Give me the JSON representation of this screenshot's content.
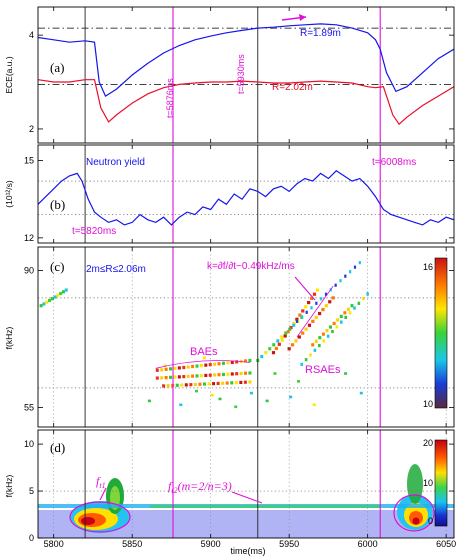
{
  "chart_data": {
    "type": "multi-panel",
    "x": {
      "label": "time(ms)",
      "range": [
        5790,
        6055
      ],
      "ticks": [
        5800,
        5850,
        5900,
        5950,
        6000,
        6050
      ]
    },
    "vlines_black": [
      5820,
      5930
    ],
    "vlines_magenta": [
      5876,
      6008
    ],
    "panels": [
      {
        "id": "a",
        "label": "(a)",
        "type": "line",
        "ylabel": "ECE(a.u.)",
        "ylim": [
          1.7,
          4.6
        ],
        "yticks": [
          "2",
          "4"
        ],
        "ytick_values": [
          2,
          4
        ],
        "hlines_dashed": [
          4.15,
          2.95
        ],
        "series": [
          {
            "name": "R=1.89m",
            "color": "#1515ee",
            "x": [
              5790,
              5800,
              5810,
              5820,
              5826,
              5829,
              5833,
              5840,
              5850,
              5860,
              5870,
              5880,
              5890,
              5900,
              5910,
              5920,
              5930,
              5940,
              5950,
              5960,
              5970,
              5980,
              5990,
              6000,
              6005,
              6008,
              6012,
              6018,
              6025,
              6035,
              6045,
              6055
            ],
            "y": [
              3.95,
              3.9,
              3.85,
              3.88,
              3.85,
              3.0,
              2.7,
              2.85,
              3.15,
              3.4,
              3.62,
              3.78,
              3.9,
              3.98,
              4.05,
              4.1,
              4.15,
              4.17,
              4.2,
              4.22,
              4.24,
              4.22,
              4.15,
              4.05,
              3.9,
              3.7,
              3.2,
              2.8,
              2.9,
              3.2,
              3.5,
              3.7
            ]
          },
          {
            "name": "R=2.02m",
            "color": "#e8102a",
            "x": [
              5790,
              5800,
              5810,
              5820,
              5826,
              5830,
              5835,
              5840,
              5850,
              5860,
              5870,
              5880,
              5890,
              5900,
              5910,
              5920,
              5930,
              5940,
              5950,
              5960,
              5970,
              5980,
              5990,
              6000,
              6005,
              6010,
              6016,
              6020,
              6025,
              6035,
              6045,
              6055
            ],
            "y": [
              3.05,
              3.0,
              3.0,
              3.05,
              3.05,
              2.45,
              2.15,
              2.3,
              2.55,
              2.75,
              2.88,
              2.95,
              2.98,
              3.0,
              3.0,
              3.02,
              3.0,
              2.98,
              2.98,
              3.0,
              3.02,
              3.0,
              2.98,
              2.9,
              2.88,
              2.9,
              2.3,
              2.1,
              2.25,
              2.5,
              2.7,
              2.9
            ]
          }
        ],
        "annotations": [
          "R=1.89m",
          "R=2.02m",
          "t=5876ms",
          "t=5930ms"
        ]
      },
      {
        "id": "b",
        "label": "(b)",
        "type": "line",
        "ylabel": "(10¹²/s)",
        "ylim": [
          11.8,
          15.6
        ],
        "yticks": [
          "12",
          "15"
        ],
        "ytick_values": [
          12,
          15
        ],
        "hlines_dotted": [
          14.2,
          12.9
        ],
        "series": [
          {
            "name": "Neutron yield",
            "color": "#1515ee",
            "x": [
              5790,
              5795,
              5800,
              5805,
              5810,
              5815,
              5818,
              5822,
              5826,
              5830,
              5835,
              5840,
              5845,
              5850,
              5855,
              5860,
              5865,
              5870,
              5875,
              5880,
              5885,
              5890,
              5895,
              5900,
              5905,
              5910,
              5915,
              5920,
              5925,
              5930,
              5935,
              5940,
              5945,
              5950,
              5955,
              5960,
              5965,
              5970,
              5975,
              5980,
              5985,
              5990,
              5995,
              6000,
              6005,
              6010,
              6015,
              6020,
              6025,
              6030,
              6035,
              6040,
              6045,
              6050,
              6055
            ],
            "y": [
              13.3,
              13.6,
              13.9,
              14.2,
              14.4,
              14.5,
              14.2,
              13.5,
              13.0,
              12.8,
              12.6,
              12.7,
              12.5,
              12.6,
              12.9,
              12.7,
              12.6,
              12.8,
              12.5,
              12.8,
              13.0,
              12.9,
              13.2,
              13.1,
              13.5,
              13.3,
              13.7,
              13.5,
              13.9,
              13.8,
              13.6,
              13.9,
              14.0,
              13.8,
              14.1,
              14.3,
              14.2,
              14.5,
              14.3,
              14.6,
              14.4,
              14.2,
              14.3,
              14.0,
              13.6,
              13.1,
              12.9,
              12.8,
              12.7,
              12.6,
              12.5,
              12.7,
              12.6,
              12.8,
              12.7
            ]
          }
        ],
        "annotations": [
          "Neutron yield",
          "t=5820ms",
          "t=6008ms"
        ]
      },
      {
        "id": "c",
        "label": "(c)",
        "type": "spectrogram",
        "ylabel": "f(kHz)",
        "ylim": [
          50,
          96
        ],
        "yticks": [
          "55",
          "90"
        ],
        "ytick_values": [
          55,
          90
        ],
        "hlines_dotted": [
          83,
          60
        ],
        "colorbar": {
          "ticks": [
            "16",
            "10"
          ],
          "tick_values": [
            16,
            10
          ]
        },
        "annotations": [
          "2m≤R≤2.06m",
          "k=∂f/∂t~0.49kHz/ms",
          "BAEs",
          "RSAEs"
        ]
      },
      {
        "id": "d",
        "label": "(d)",
        "type": "spectrogram",
        "ylabel": "f(kHz)",
        "ylim": [
          0,
          11.5
        ],
        "yticks": [
          "0",
          "5",
          "10"
        ],
        "ytick_values": [
          0,
          5,
          10
        ],
        "hlines_dotted": [
          5
        ],
        "colorbar": {
          "ticks": [
            "20",
            "10",
            "0"
          ],
          "tick_values": [
            20,
            10,
            0
          ]
        },
        "annotations": [
          "f",
          "t1",
          "f",
          "t2",
          "(m=2/n=3)"
        ]
      }
    ]
  }
}
